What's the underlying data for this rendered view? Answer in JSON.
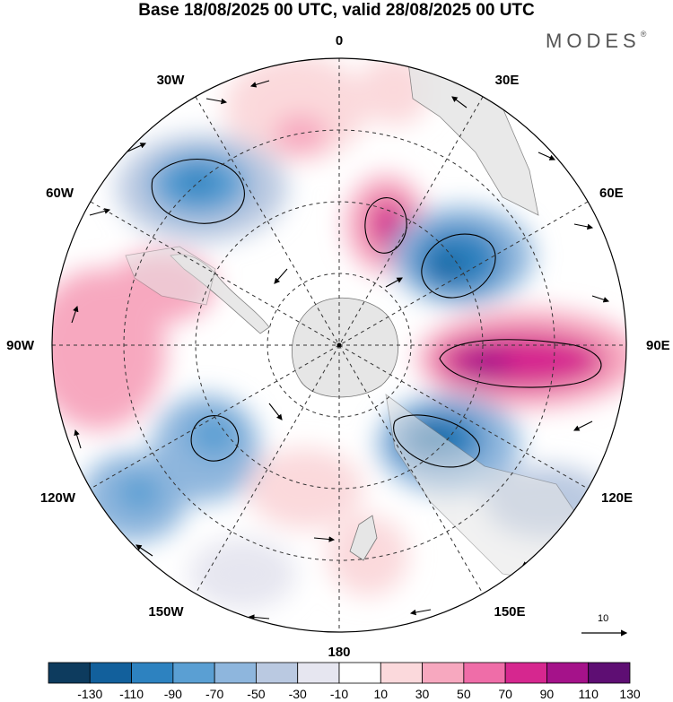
{
  "title": "Base 18/08/2025 00 UTC, valid 28/08/2025 00 UTC",
  "brand": {
    "name": "MODES",
    "mark": "®"
  },
  "lon_labels": {
    "n0": "0",
    "e30": "30E",
    "e60": "60E",
    "e90": "90E",
    "e120": "120E",
    "e150": "150E",
    "s180": "180",
    "w150": "150W",
    "w120": "120W",
    "w90": "90W",
    "w60": "60W",
    "w30": "30W"
  },
  "reference_vector": {
    "label": "10",
    "value": 10
  },
  "colorbar": {
    "ticks": [
      "-130",
      "-110",
      "-90",
      "-70",
      "-50",
      "-30",
      "-10",
      "10",
      "30",
      "50",
      "70",
      "90",
      "110",
      "130"
    ],
    "colors": [
      "#0d3b5e",
      "#12609c",
      "#2d82c0",
      "#5a9fd3",
      "#8eb6dd",
      "#bac9e1",
      "#e6e6f0",
      "#ffffff",
      "#fbd9dc",
      "#f7a8bf",
      "#ef6da8",
      "#d6278f",
      "#a5128a",
      "#5e0e73"
    ]
  },
  "legend_colors": {
    "land": "#e6e6e6",
    "coast": "#777777",
    "grid": "#333333"
  }
}
